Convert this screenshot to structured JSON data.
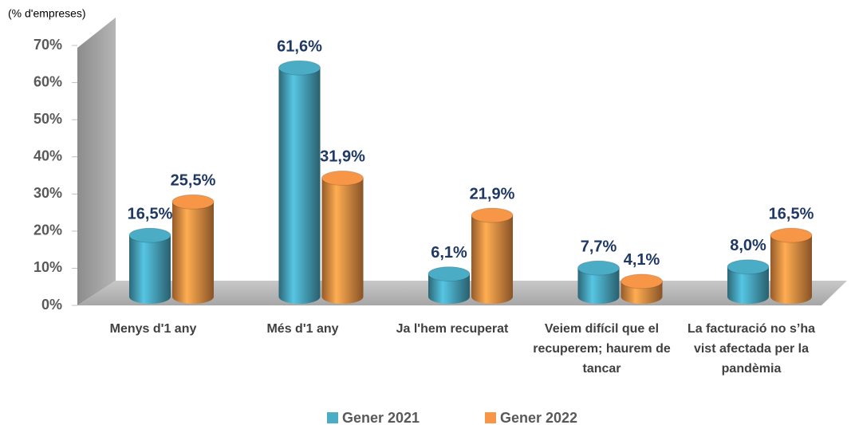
{
  "chart_data": {
    "type": "bar3d",
    "y_axis_label": "(% d'empreses)",
    "categories": [
      "Menys d'1 any",
      "Més d'1 any",
      "Ja l'hem recuperat",
      "Veiem difícil que el recuperem; haurem de tancar",
      "La facturació no s’ha vist afectada per la pandèmia"
    ],
    "series": [
      {
        "name": "Gener 2021",
        "color": "#4bacc6",
        "values": [
          16.5,
          61.6,
          6.1,
          7.7,
          8.0
        ],
        "value_labels": [
          "16,5%",
          "61,6%",
          "6,1%",
          "7,7%",
          "8,0%"
        ]
      },
      {
        "name": "Gener 2022",
        "color": "#f79646",
        "values": [
          25.5,
          31.9,
          21.9,
          4.1,
          16.5
        ],
        "value_labels": [
          "25,5%",
          "31,9%",
          "21,9%",
          "4,1%",
          "16,5%"
        ]
      }
    ],
    "ylim": [
      0,
      70
    ],
    "yticks": [
      {
        "value": 0,
        "label": "0%"
      },
      {
        "value": 10,
        "label": "10%"
      },
      {
        "value": 20,
        "label": "20%"
      },
      {
        "value": 30,
        "label": "30%"
      },
      {
        "value": 40,
        "label": "40%"
      },
      {
        "value": 50,
        "label": "50%"
      },
      {
        "value": 60,
        "label": "60%"
      },
      {
        "value": 70,
        "label": "70%"
      }
    ],
    "legend": "bottom"
  }
}
